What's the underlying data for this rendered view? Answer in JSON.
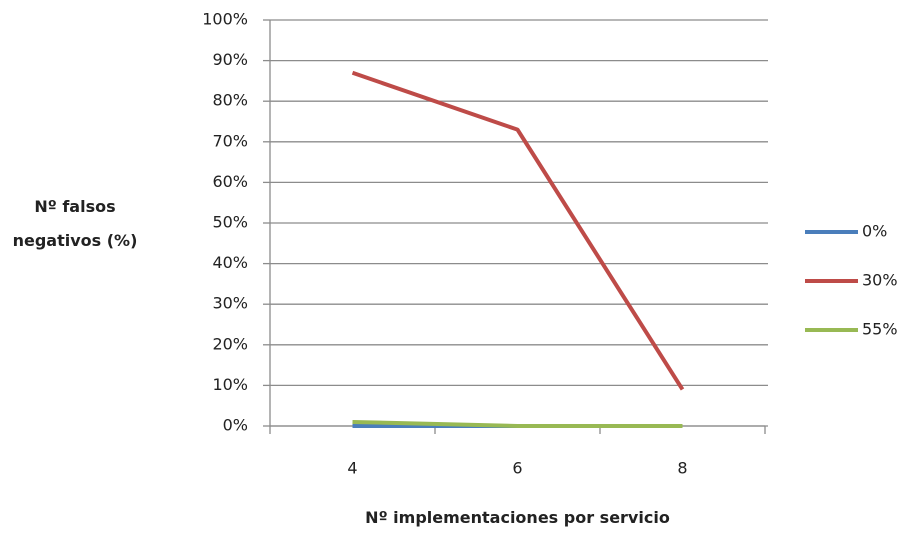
{
  "chart_data": {
    "type": "line",
    "y_label": "Nº falsos negativos (%)",
    "x_label": "Nº implementaciones por servicio",
    "categories": [
      "4",
      "6",
      "8"
    ],
    "series": [
      {
        "name": "0%",
        "color": "#4a7ebb",
        "values": [
          0,
          0,
          0
        ]
      },
      {
        "name": "30%",
        "color": "#be4b48",
        "values": [
          87,
          73,
          9
        ]
      },
      {
        "name": "55%",
        "color": "#98b954",
        "values": [
          1,
          0,
          0
        ]
      }
    ],
    "ylim": [
      0,
      100
    ],
    "yticks": [
      {
        "value": 0,
        "label": "0%"
      },
      {
        "value": 10,
        "label": "10%"
      },
      {
        "value": 20,
        "label": "20%"
      },
      {
        "value": 30,
        "label": "30%"
      },
      {
        "value": 40,
        "label": "40%"
      },
      {
        "value": 50,
        "label": "50%"
      },
      {
        "value": 60,
        "label": "60%"
      },
      {
        "value": 70,
        "label": "70%"
      },
      {
        "value": 80,
        "label": "80%"
      },
      {
        "value": 90,
        "label": "90%"
      },
      {
        "value": 100,
        "label": "100%"
      }
    ],
    "grid": true,
    "legend": "right"
  }
}
